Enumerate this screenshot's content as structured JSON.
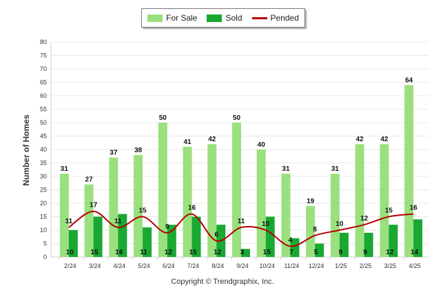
{
  "legend": {
    "for_sale": "For Sale",
    "sold": "Sold",
    "pended": "Pended"
  },
  "footer": {
    "copyright": "Copyright © Trendgraphix, Inc."
  },
  "colors": {
    "for_sale": "#9be07f",
    "sold": "#19a832",
    "pended": "#b40000",
    "grid": "#e8e8e8"
  },
  "chart_data": {
    "type": "bar",
    "categories": [
      "2/24",
      "3/24",
      "4/24",
      "5/24",
      "6/24",
      "7/24",
      "8/24",
      "9/24",
      "10/24",
      "11/24",
      "12/24",
      "1/25",
      "2/25",
      "3/25",
      "4/25"
    ],
    "series": [
      {
        "name": "For Sale",
        "type": "bar",
        "values": [
          31,
          27,
          37,
          38,
          50,
          41,
          42,
          50,
          40,
          31,
          19,
          31,
          42,
          42,
          64
        ]
      },
      {
        "name": "Sold",
        "type": "bar",
        "values": [
          10,
          15,
          16,
          11,
          12,
          15,
          12,
          3,
          15,
          7,
          5,
          9,
          9,
          12,
          14
        ]
      },
      {
        "name": "Pended",
        "type": "line",
        "values": [
          11,
          17,
          11,
          15,
          9,
          16,
          6,
          11,
          10,
          4,
          8,
          10,
          12,
          15,
          16
        ]
      }
    ],
    "ylabel": "Number of Homes",
    "xlabel": "",
    "ylim": [
      0,
      80
    ],
    "yticks": [
      0,
      5,
      10,
      15,
      20,
      25,
      30,
      35,
      40,
      45,
      50,
      55,
      60,
      65,
      70,
      75,
      80
    ],
    "grid": true,
    "legend_position": "top-center"
  }
}
